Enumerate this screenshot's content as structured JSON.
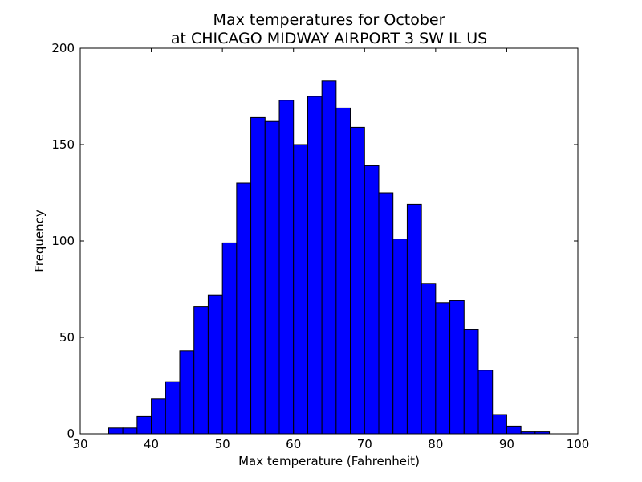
{
  "chart_data": {
    "type": "bar",
    "title_line1": "Max temperatures for October",
    "title_line2": "at CHICAGO MIDWAY AIRPORT 3 SW IL US",
    "xlabel": "Max temperature (Fahrenheit)",
    "ylabel": "Frequency",
    "xlim": [
      30,
      100
    ],
    "ylim": [
      0,
      200
    ],
    "x_ticks": [
      30,
      40,
      50,
      60,
      70,
      80,
      90,
      100
    ],
    "y_ticks": [
      0,
      50,
      100,
      150,
      200
    ],
    "bin_width": 2,
    "bins": [
      {
        "start": 34,
        "value": 3
      },
      {
        "start": 36,
        "value": 3
      },
      {
        "start": 38,
        "value": 9
      },
      {
        "start": 40,
        "value": 18
      },
      {
        "start": 42,
        "value": 27
      },
      {
        "start": 44,
        "value": 43
      },
      {
        "start": 46,
        "value": 66
      },
      {
        "start": 48,
        "value": 72
      },
      {
        "start": 50,
        "value": 99
      },
      {
        "start": 52,
        "value": 130
      },
      {
        "start": 54,
        "value": 164
      },
      {
        "start": 56,
        "value": 162
      },
      {
        "start": 58,
        "value": 173
      },
      {
        "start": 60,
        "value": 150
      },
      {
        "start": 62,
        "value": 175
      },
      {
        "start": 64,
        "value": 183
      },
      {
        "start": 66,
        "value": 169
      },
      {
        "start": 68,
        "value": 159
      },
      {
        "start": 70,
        "value": 139
      },
      {
        "start": 72,
        "value": 125
      },
      {
        "start": 74,
        "value": 101
      },
      {
        "start": 76,
        "value": 119
      },
      {
        "start": 78,
        "value": 78
      },
      {
        "start": 80,
        "value": 68
      },
      {
        "start": 82,
        "value": 69
      },
      {
        "start": 84,
        "value": 54
      },
      {
        "start": 86,
        "value": 33
      },
      {
        "start": 88,
        "value": 10
      },
      {
        "start": 90,
        "value": 4
      },
      {
        "start": 92,
        "value": 1
      },
      {
        "start": 94,
        "value": 1
      }
    ],
    "bar_color": "#0000ff",
    "edge_color": "#000000",
    "grid": false,
    "legend": "none"
  }
}
